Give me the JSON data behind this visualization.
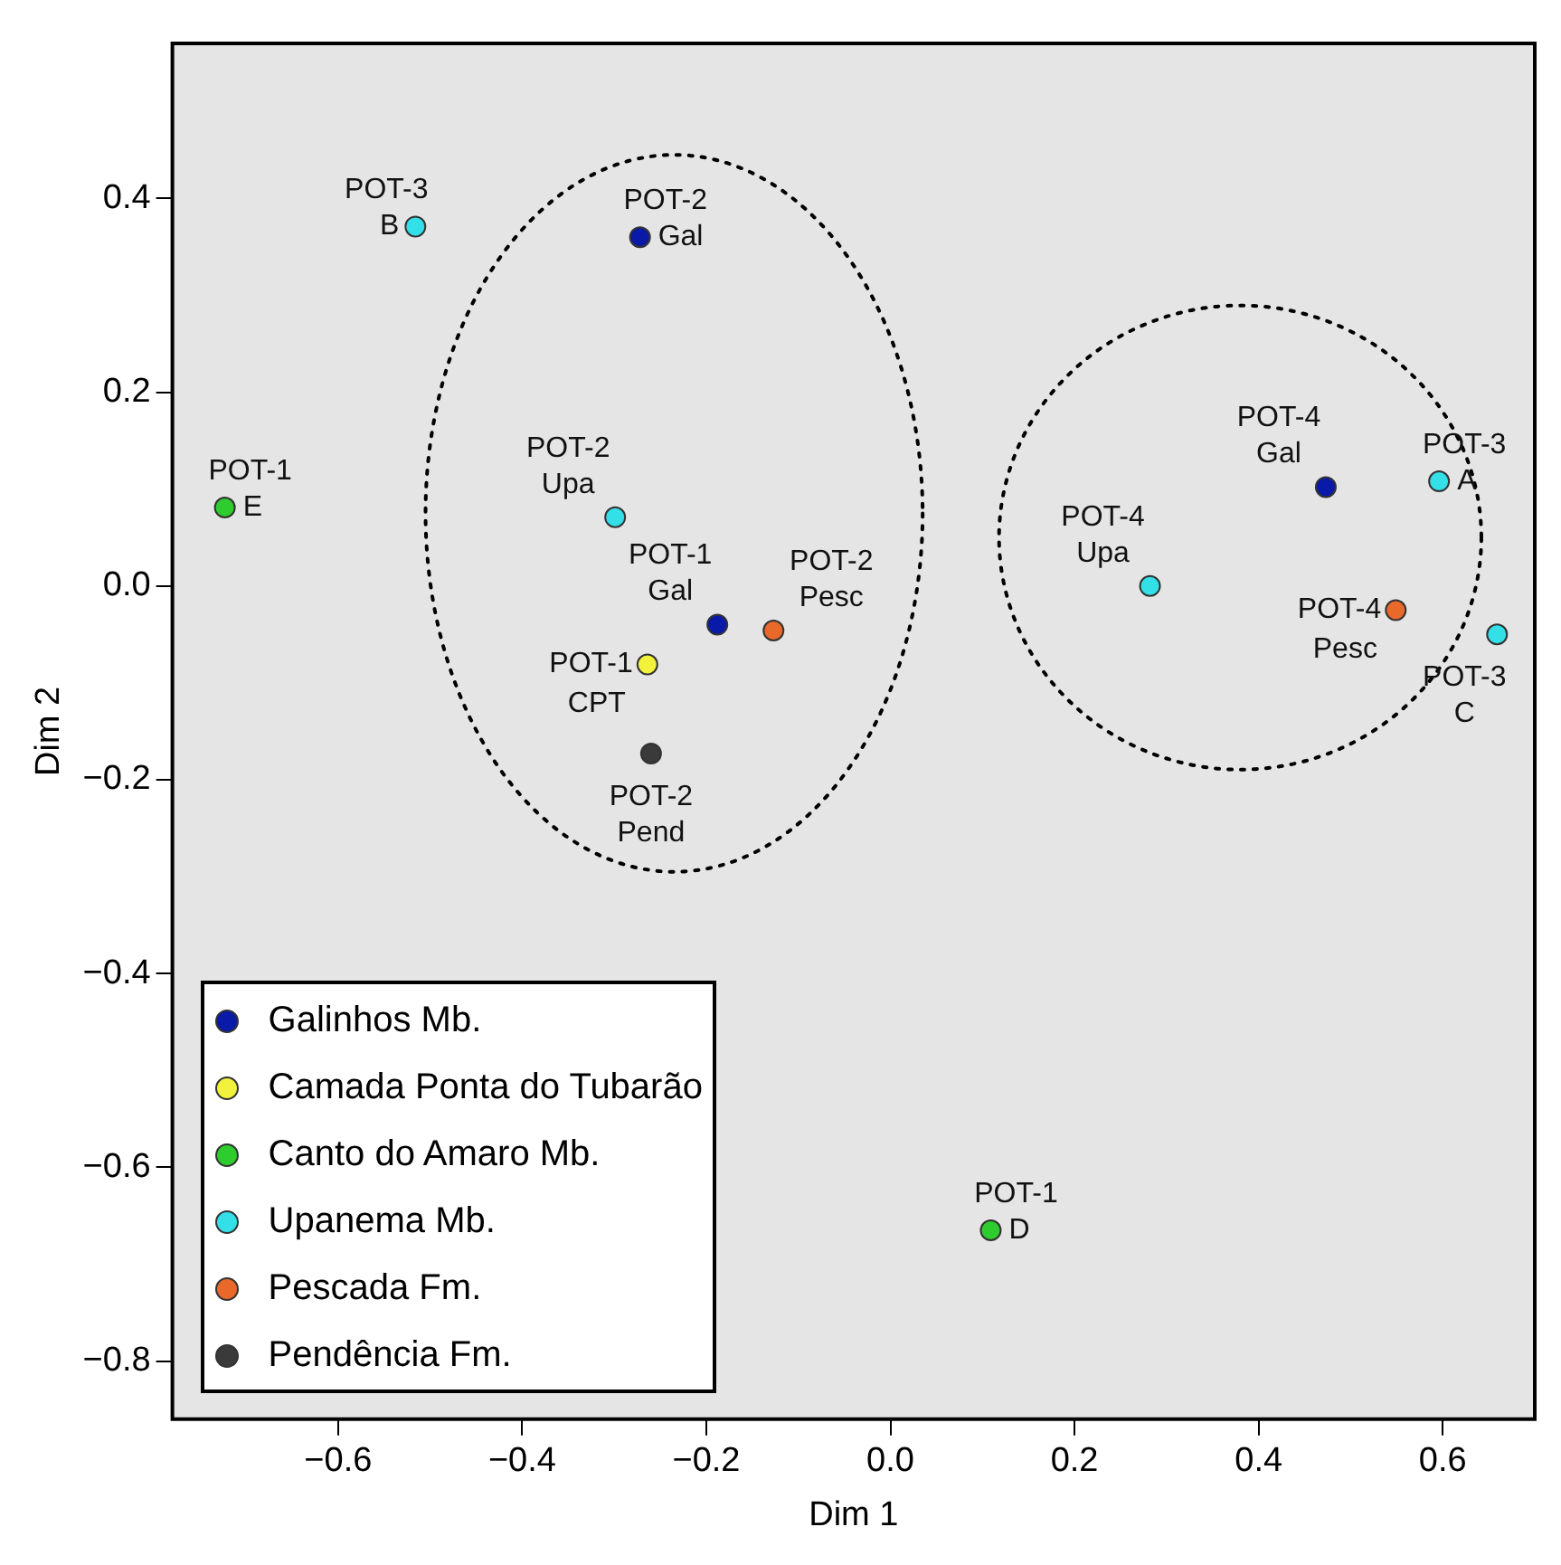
{
  "chart_data": {
    "type": "scatter",
    "xlabel": "Dim 1",
    "ylabel": "Dim 2",
    "xlim": [
      -0.78,
      0.7
    ],
    "ylim": [
      -0.86,
      0.56
    ],
    "xticks": [
      {
        "value": -0.6,
        "label": "−0.6"
      },
      {
        "value": -0.4,
        "label": "−0.4"
      },
      {
        "value": -0.2,
        "label": "−0.2"
      },
      {
        "value": 0,
        "label": "0.0"
      },
      {
        "value": 0.2,
        "label": "0.2"
      },
      {
        "value": 0.4,
        "label": "0.4"
      },
      {
        "value": 0.6,
        "label": "0.6"
      }
    ],
    "yticks": [
      {
        "value": -0.8,
        "label": "−0.8"
      },
      {
        "value": -0.6,
        "label": "−0.6"
      },
      {
        "value": -0.4,
        "label": "−0.4"
      },
      {
        "value": -0.2,
        "label": "−0.2"
      },
      {
        "value": 0,
        "label": "0.0"
      },
      {
        "value": 0.2,
        "label": "0.2"
      },
      {
        "value": 0.4,
        "label": "0.4"
      }
    ],
    "grid": false,
    "legend": "bottom left",
    "marker": "circle",
    "series": [
      {
        "name": "Galinhos Mb.",
        "color": "#0a1aa8",
        "x": [
          -0.272,
          -0.188,
          0.473
        ],
        "values": [
          0.36,
          -0.04,
          0.102
        ]
      },
      {
        "name": "Camada Ponta do Tubarão",
        "color": "#f2f23c",
        "x": [
          -0.264
        ],
        "values": [
          -0.081
        ]
      },
      {
        "name": "Canto do Amaro Mb.",
        "color": "#2ecc2e",
        "x": [
          -0.723,
          0.109
        ],
        "values": [
          0.081,
          -0.665
        ]
      },
      {
        "name": "Upanema Mb.",
        "color": "#33e0e8",
        "x": [
          -0.516,
          -0.299,
          0.282,
          0.596,
          0.659
        ],
        "values": [
          0.371,
          0.071,
          0.0,
          0.108,
          -0.05
        ]
      },
      {
        "name": "Pescada Fm.",
        "color": "#e8692a",
        "x": [
          -0.127,
          0.549
        ],
        "values": [
          -0.046,
          -0.025
        ]
      },
      {
        "name": "Pendência Fm.",
        "color": "#3a3a3a",
        "x": [
          -0.26
        ],
        "values": [
          -0.173
        ]
      }
    ],
    "annotations": [
      {
        "text": "POT-3\nB",
        "x": -0.516,
        "y": 0.371
      },
      {
        "text": "POT-2\nGal",
        "x": -0.272,
        "y": 0.36
      },
      {
        "text": "POT-1\nE",
        "x": -0.723,
        "y": 0.081
      },
      {
        "text": "POT-2\nUpa",
        "x": -0.299,
        "y": 0.071
      },
      {
        "text": "POT-1\nGal",
        "x": -0.188,
        "y": -0.04
      },
      {
        "text": "POT-2\nPesc",
        "x": -0.127,
        "y": -0.046
      },
      {
        "text": "POT-1\nCPT",
        "x": -0.264,
        "y": -0.081
      },
      {
        "text": "POT-2\nPend",
        "x": -0.26,
        "y": -0.173
      },
      {
        "text": "POT-1\nD",
        "x": 0.109,
        "y": -0.665
      },
      {
        "text": "POT-4\nUpa",
        "x": 0.282,
        "y": 0.0
      },
      {
        "text": "POT-4\nGal",
        "x": 0.473,
        "y": 0.102
      },
      {
        "text": "POT-3\nA",
        "x": 0.596,
        "y": 0.108
      },
      {
        "text": "POT-4\nPesc",
        "x": 0.549,
        "y": -0.025
      },
      {
        "text": "POT-3\nC",
        "x": 0.659,
        "y": -0.05
      }
    ]
  }
}
